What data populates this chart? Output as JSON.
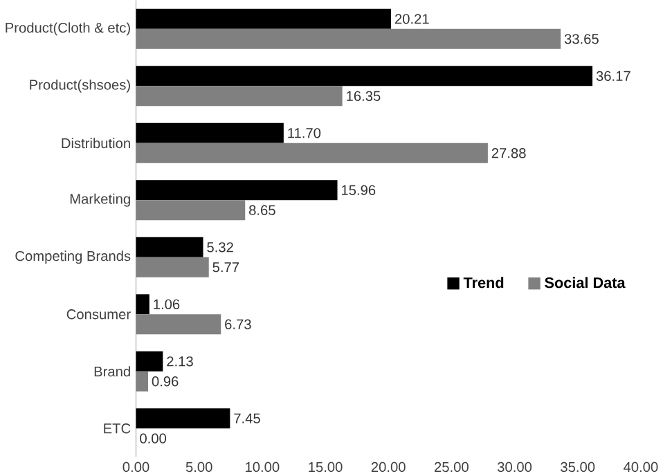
{
  "chart_data": {
    "type": "bar",
    "orientation": "horizontal",
    "categories": [
      "Product(Cloth & etc)",
      "Product(shsoes)",
      "Distribution",
      "Marketing",
      "Competing Brands",
      "Consumer",
      "Brand",
      "ETC"
    ],
    "series": [
      {
        "name": "Trend",
        "color": "#000000",
        "values": [
          20.21,
          36.17,
          11.7,
          15.96,
          5.32,
          1.06,
          2.13,
          7.45
        ],
        "value_labels": [
          "20.21",
          "36.17",
          "11.70",
          "15.96",
          "5.32",
          "1.06",
          "2.13",
          "7.45"
        ]
      },
      {
        "name": "Social Data",
        "color": "#808080",
        "values": [
          33.65,
          16.35,
          27.88,
          8.65,
          5.77,
          6.73,
          0.96,
          0.0
        ],
        "value_labels": [
          "33.65",
          "16.35",
          "27.88",
          "8.65",
          "5.77",
          "6.73",
          "0.96",
          "0.00"
        ]
      }
    ],
    "xlim": [
      0,
      40
    ],
    "xticks": [
      {
        "value": 0,
        "label": "0.00"
      },
      {
        "value": 5,
        "label": "5.00"
      },
      {
        "value": 10,
        "label": "10.00"
      },
      {
        "value": 15,
        "label": "15.00"
      },
      {
        "value": 20,
        "label": "20.00"
      },
      {
        "value": 25,
        "label": "25.00"
      },
      {
        "value": 30,
        "label": "30.00"
      },
      {
        "value": 35,
        "label": "35.00"
      },
      {
        "value": 40,
        "label": "40.00"
      }
    ],
    "legend": "right",
    "grid": false
  }
}
